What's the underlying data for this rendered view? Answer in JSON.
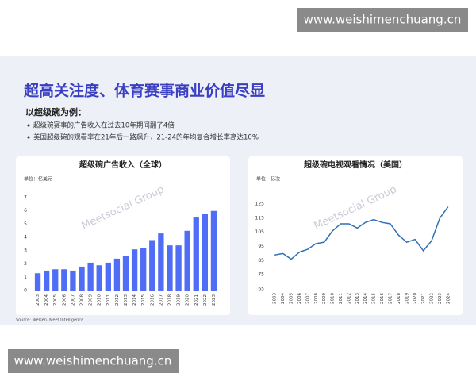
{
  "header": {
    "title": "超高关注度、体育赛事商业价值尽显",
    "subtitle": "以超级碗为例：",
    "bullets": [
      "超级碗赛事的广告收入在过去10年期间翻了4倍",
      "美国超级碗的观看率在21年后一路飙升，21-24的年均复合增长率高达10%"
    ]
  },
  "site_watermark": "www.weishimenchuang.cn",
  "logo_watermark": "Meetsocial Group",
  "source": "Source: Nielsen, Meet Intelligence",
  "chart_data": [
    {
      "type": "bar",
      "title": "超级碗广告收入（全球）",
      "unit": "单位：亿美元",
      "color": "#4f6df5",
      "categories": [
        "2003",
        "2004",
        "2005",
        "2006",
        "2007",
        "2008",
        "2009",
        "2010",
        "2011",
        "2012",
        "2013",
        "2014",
        "2015",
        "2016",
        "2017",
        "2018",
        "2019",
        "2020",
        "2021",
        "2022",
        "2023"
      ],
      "values": [
        1.3,
        1.5,
        1.6,
        1.6,
        1.5,
        1.8,
        2.1,
        1.9,
        2.1,
        2.4,
        2.6,
        3.1,
        3.2,
        3.8,
        4.3,
        3.4,
        3.4,
        4.5,
        5.5,
        5.8,
        6.0
      ],
      "ylim": [
        0,
        7
      ],
      "yticks": [
        0,
        1,
        2,
        3,
        4,
        5,
        6,
        7
      ]
    },
    {
      "type": "line",
      "title": "超级碗电视观看情况（美国）",
      "unit": "单位：亿次",
      "color": "#2f6fb3",
      "categories": [
        "2003",
        "2004",
        "2005",
        "2006",
        "2007",
        "2008",
        "2009",
        "2010",
        "2011",
        "2012",
        "2013",
        "2014",
        "2015",
        "2016",
        "2017",
        "2018",
        "2019",
        "2020",
        "2021",
        "2022",
        "2023",
        "2024"
      ],
      "values": [
        89,
        90,
        86,
        91,
        93,
        97,
        98,
        106,
        111,
        111,
        108,
        112,
        114,
        112,
        111,
        103,
        98,
        100,
        92,
        99,
        115,
        123
      ],
      "ylim": [
        65,
        125
      ],
      "yticks": [
        65,
        75,
        85,
        95,
        105,
        115,
        125
      ]
    }
  ]
}
